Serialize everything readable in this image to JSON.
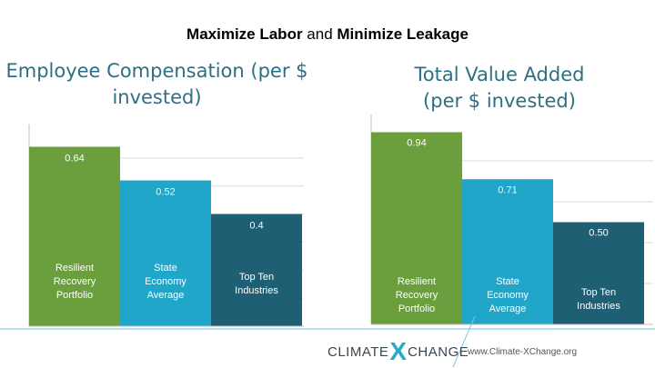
{
  "header": {
    "title_part1": "Maximize Labor",
    "title_and": " and ",
    "title_part2": "Minimize Leakage"
  },
  "colors": {
    "resilient": "#6b9f3e",
    "state": "#1fa6c8",
    "top_ten": "#1e5f73",
    "title": "#2e6f84"
  },
  "chart_data": [
    {
      "type": "bar",
      "title": "Employee Compensation (per $ invested)",
      "title_lines": [
        "Employee Compensation (per $",
        "invested)"
      ],
      "categories": [
        "Resilient Recovery Portfolio",
        "State Economy Average",
        "Top Ten Industries"
      ],
      "category_lines": [
        [
          "Resilient",
          "Recovery",
          "Portfolio"
        ],
        [
          "State",
          "Economy",
          "Average"
        ],
        [
          "Top Ten",
          "Industries"
        ]
      ],
      "values": [
        0.64,
        0.52,
        0.4
      ],
      "value_labels": [
        "0.64",
        "0.52",
        "0.4"
      ],
      "ylim": [
        0,
        0.7
      ],
      "grid": true
    },
    {
      "type": "bar",
      "title": "Total Value Added (per $ invested)",
      "title_lines": [
        "Total Value Added",
        "(per $ invested)"
      ],
      "categories": [
        "Resilient Recovery Portfolio",
        "State Economy Average",
        "Top Ten Industries"
      ],
      "category_lines": [
        [
          "Resilient",
          "Recovery",
          "Portfolio"
        ],
        [
          "State",
          "Economy",
          "Average"
        ],
        [
          "Top Ten",
          "Industries"
        ]
      ],
      "values": [
        0.94,
        0.71,
        0.5
      ],
      "value_labels": [
        "0.94",
        "0.71",
        "0.50"
      ],
      "ylim": [
        0,
        1.0
      ],
      "grid": true
    }
  ],
  "footer": {
    "logo_word1": "CLIMATE",
    "logo_mark": "X",
    "logo_word2": "CHANGE",
    "url": "www.Climate-XChange.org"
  }
}
